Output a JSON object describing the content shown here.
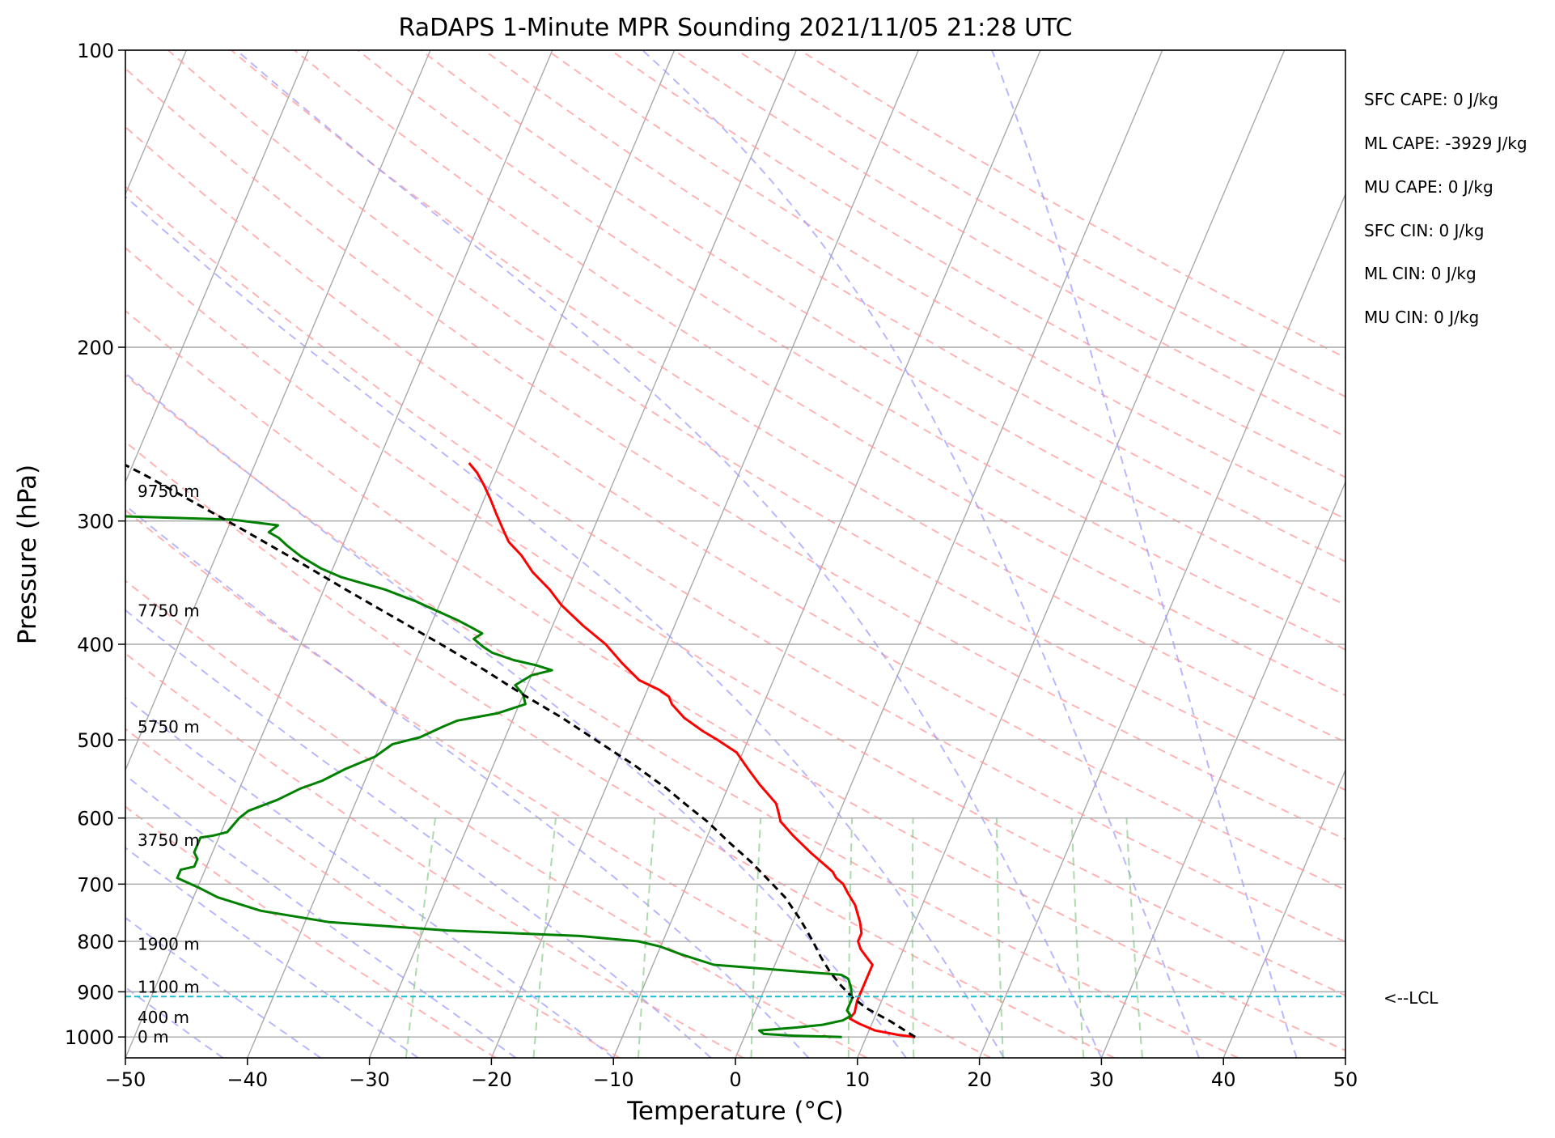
{
  "chart_data": {
    "type": "line",
    "title": "RaDAPS 1-Minute MPR Sounding 2021/11/05 21:28 UTC",
    "xlabel": "Temperature (°C)",
    "ylabel": "Pressure (hPa)",
    "xlim": [
      -50,
      50
    ],
    "ylim": [
      1050,
      100
    ],
    "y_scale": "log",
    "x_ticks": [
      -50,
      -40,
      -30,
      -20,
      -10,
      0,
      10,
      20,
      30,
      40,
      50
    ],
    "x_tick_labels": [
      "−50",
      "−40",
      "−30",
      "−20",
      "−10",
      "0",
      "10",
      "20",
      "30",
      "40",
      "50"
    ],
    "y_ticks": [
      1000,
      900,
      800,
      700,
      600,
      500,
      400,
      300,
      200,
      100
    ],
    "y_tick_labels": [
      "1000",
      "900",
      "800",
      "700",
      "600",
      "500",
      "400",
      "300",
      "200",
      "100"
    ],
    "grid": true,
    "skew": 35,
    "series": [
      {
        "id": "temperature",
        "color": "#ff0000",
        "points": [
          [
            14.0,
            1000
          ],
          [
            12.5,
            995
          ],
          [
            10.5,
            985
          ],
          [
            9.0,
            970
          ],
          [
            8.0,
            958
          ],
          [
            8.2,
            945
          ],
          [
            8.0,
            920
          ],
          [
            8.0,
            900
          ],
          [
            8.0,
            880
          ],
          [
            8.0,
            860
          ],
          [
            8.0,
            845
          ],
          [
            7.5,
            835
          ],
          [
            7.0,
            825
          ],
          [
            6.5,
            815
          ],
          [
            6.0,
            800
          ],
          [
            6.0,
            785
          ],
          [
            5.5,
            765
          ],
          [
            4.5,
            735
          ],
          [
            3.5,
            715
          ],
          [
            2.8,
            700
          ],
          [
            2.0,
            690
          ],
          [
            1.5,
            680
          ],
          [
            -1.0,
            650
          ],
          [
            -3.0,
            625
          ],
          [
            -4.5,
            605
          ],
          [
            -5.0,
            592
          ],
          [
            -5.5,
            580
          ],
          [
            -7.5,
            555
          ],
          [
            -9.0,
            535
          ],
          [
            -10.5,
            515
          ],
          [
            -12.5,
            500
          ],
          [
            -14.0,
            490
          ],
          [
            -16.0,
            475
          ],
          [
            -17.5,
            460
          ],
          [
            -18.0,
            452
          ],
          [
            -19.0,
            445
          ],
          [
            -21.0,
            435
          ],
          [
            -23.0,
            418
          ],
          [
            -25.0,
            400
          ],
          [
            -27.5,
            383
          ],
          [
            -30.0,
            365
          ],
          [
            -31.5,
            352
          ],
          [
            -33.5,
            338
          ],
          [
            -35.0,
            325
          ],
          [
            -36.5,
            315
          ],
          [
            -37.5,
            305
          ],
          [
            -38.5,
            295
          ],
          [
            -39.5,
            285
          ],
          [
            -40.5,
            276
          ],
          [
            -41.5,
            268
          ],
          [
            -42.5,
            262
          ]
        ]
      },
      {
        "id": "dewpoint",
        "color": "#008000",
        "points": [
          [
            8.0,
            1000
          ],
          [
            4.0,
            997
          ],
          [
            1.5,
            993
          ],
          [
            1.0,
            985
          ],
          [
            4.0,
            978
          ],
          [
            6.0,
            972
          ],
          [
            7.5,
            962
          ],
          [
            8.0,
            952
          ],
          [
            7.5,
            940
          ],
          [
            7.5,
            915
          ],
          [
            7.0,
            890
          ],
          [
            6.5,
            873
          ],
          [
            5.8,
            865
          ],
          [
            -5.0,
            845
          ],
          [
            -8.0,
            825
          ],
          [
            -10.0,
            810
          ],
          [
            -12.0,
            800
          ],
          [
            -17.0,
            790
          ],
          [
            -28.0,
            780
          ],
          [
            -38.0,
            765
          ],
          [
            -44.0,
            745
          ],
          [
            -48.0,
            722
          ],
          [
            -50.0,
            705
          ],
          [
            -52.0,
            690
          ],
          [
            -52.0,
            677
          ],
          [
            -51.0,
            672
          ],
          [
            -51.0,
            660
          ],
          [
            -51.5,
            650
          ],
          [
            -51.5,
            628
          ],
          [
            -50.5,
            625
          ],
          [
            -49.5,
            620
          ],
          [
            -49.0,
            600
          ],
          [
            -48.5,
            590
          ],
          [
            -46.5,
            575
          ],
          [
            -45.0,
            560
          ],
          [
            -43.5,
            550
          ],
          [
            -42.0,
            535
          ],
          [
            -40.0,
            520
          ],
          [
            -39.0,
            505
          ],
          [
            -37.0,
            497
          ],
          [
            -35.5,
            485
          ],
          [
            -34.5,
            478
          ],
          [
            -31.5,
            470
          ],
          [
            -29.5,
            460
          ],
          [
            -30.0,
            450
          ],
          [
            -31.0,
            440
          ],
          [
            -30.0,
            430
          ],
          [
            -28.5,
            425
          ],
          [
            -30.0,
            420
          ],
          [
            -32.0,
            415
          ],
          [
            -34.0,
            408
          ],
          [
            -35.0,
            402
          ],
          [
            -36.0,
            395
          ],
          [
            -35.5,
            390
          ],
          [
            -36.5,
            385
          ],
          [
            -38.0,
            378
          ],
          [
            -40.5,
            368
          ],
          [
            -42.0,
            362
          ],
          [
            -43.5,
            357
          ],
          [
            -45.0,
            352
          ],
          [
            -47.0,
            347
          ],
          [
            -49.0,
            342
          ],
          [
            -51.0,
            335
          ],
          [
            -53.0,
            326
          ],
          [
            -54.5,
            318
          ],
          [
            -55.5,
            312
          ],
          [
            -56.5,
            308
          ],
          [
            -56.0,
            303
          ],
          [
            -60.0,
            299
          ],
          [
            -72.0,
            296
          ],
          [
            -88.0,
            296
          ],
          [
            -95.0,
            296
          ]
        ]
      },
      {
        "id": "parcel-path",
        "color": "#000000",
        "dashed": true,
        "points": [
          [
            14.0,
            1000
          ],
          [
            11.5,
            965
          ],
          [
            9.0,
            935
          ],
          [
            7.5,
            912
          ],
          [
            6.2,
            888
          ],
          [
            4.8,
            860
          ],
          [
            3.5,
            830
          ],
          [
            2.3,
            800
          ],
          [
            0.5,
            760
          ],
          [
            -1.5,
            722
          ],
          [
            -3.0,
            700
          ],
          [
            -5.5,
            665
          ],
          [
            -8.0,
            635
          ],
          [
            -10.5,
            605
          ],
          [
            -12.5,
            585
          ],
          [
            -15.0,
            560
          ],
          [
            -18.5,
            530
          ],
          [
            -22.5,
            500
          ],
          [
            -26.0,
            475
          ],
          [
            -30.0,
            450
          ],
          [
            -34.0,
            425
          ],
          [
            -38.5,
            400
          ],
          [
            -43.0,
            377
          ],
          [
            -48.0,
            353
          ],
          [
            -53.0,
            330
          ],
          [
            -58.5,
            307
          ],
          [
            -64.0,
            286
          ],
          [
            -68.5,
            270
          ],
          [
            -71.0,
            262
          ]
        ]
      }
    ],
    "lcl": {
      "pressure": 910,
      "label": "<--LCL",
      "color": "#17becf"
    },
    "height_labels": [
      {
        "pressure": 1000,
        "label": "0 m"
      },
      {
        "pressure": 955,
        "label": "400 m"
      },
      {
        "pressure": 890,
        "label": "1100 m"
      },
      {
        "pressure": 805,
        "label": "1900 m"
      },
      {
        "pressure": 632,
        "label": "3750 m"
      },
      {
        "pressure": 485,
        "label": "5750 m"
      },
      {
        "pressure": 370,
        "label": "7750 m"
      },
      {
        "pressure": 280,
        "label": "9750 m"
      }
    ],
    "annotations": [
      "SFC CAPE: 0 J/kg",
      "ML CAPE: -3929 J/kg",
      "MU CAPE: 0 J/kg",
      "SFC CIN: 0 J/kg",
      "ML CIN: 0 J/kg",
      "MU CIN: 0 J/kg"
    ],
    "isotherm_color": "#a9a9a9",
    "dry_adiabat_color": "#ff9999",
    "moist_adiabat_color": "#9999ff",
    "mixing_ratio_color": "#88cc88"
  }
}
